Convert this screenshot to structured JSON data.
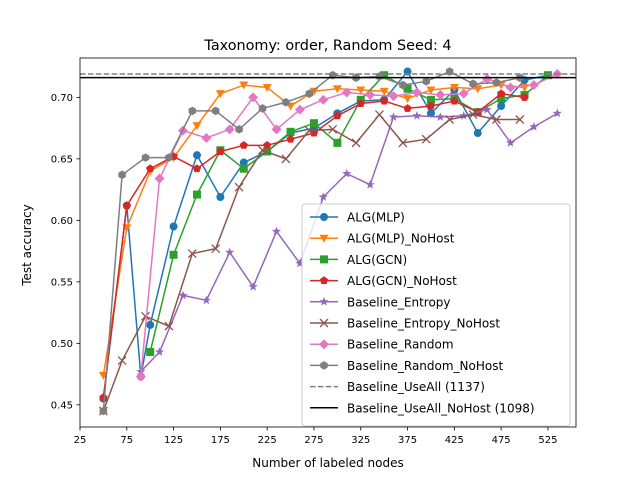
{
  "chart_data": {
    "type": "line",
    "title": "Taxonomy: order, Random Seed: 4",
    "xlabel": "Number of labeled nodes",
    "ylabel": "Test accuracy",
    "xlim": [
      25,
      555
    ],
    "ylim": [
      0.432,
      0.732
    ],
    "xticks": [
      25,
      75,
      125,
      175,
      225,
      275,
      325,
      375,
      425,
      475,
      525
    ],
    "yticks": [
      0.45,
      0.5,
      0.55,
      0.6,
      0.65,
      0.7
    ],
    "ytick_labels": [
      "0.45",
      "0.50",
      "0.55",
      "0.60",
      "0.65",
      "0.70"
    ],
    "grid": false,
    "legend_position": "lower-right",
    "series": [
      {
        "name": "ALG(MLP)",
        "color": "#1f77b4",
        "marker": "circle",
        "linestyle": "solid",
        "x": [
          50,
          75,
          90,
          100,
          125,
          150,
          175,
          200,
          225,
          250,
          275,
          300,
          325,
          350,
          375,
          400,
          425,
          450,
          475,
          500,
          525
        ],
        "y": [
          0.455,
          0.612,
          0.473,
          0.515,
          0.595,
          0.653,
          0.619,
          0.647,
          0.656,
          0.671,
          0.675,
          0.687,
          0.697,
          0.698,
          0.721,
          0.687,
          0.706,
          0.671,
          0.693,
          0.714,
          0.718
        ]
      },
      {
        "name": "ALG(MLP)_NoHost",
        "color": "#ff7f0e",
        "marker": "triangle-down",
        "linestyle": "solid",
        "x": [
          50,
          75,
          100,
          125,
          150,
          175,
          200,
          225,
          250,
          275,
          300,
          325,
          350,
          375,
          400,
          425,
          450,
          475,
          500
        ],
        "y": [
          0.474,
          0.594,
          0.64,
          0.651,
          0.677,
          0.703,
          0.71,
          0.708,
          0.693,
          0.705,
          0.707,
          0.706,
          0.705,
          0.699,
          0.706,
          0.708,
          0.707,
          0.71,
          0.708
        ]
      },
      {
        "name": "ALG(GCN)",
        "color": "#2ca02c",
        "marker": "square",
        "linestyle": "solid",
        "x": [
          100,
          125,
          150,
          175,
          200,
          225,
          250,
          275,
          300,
          325,
          350,
          375,
          400,
          425,
          450,
          475,
          500,
          525
        ],
        "y": [
          0.493,
          0.572,
          0.621,
          0.657,
          0.642,
          0.656,
          0.672,
          0.679,
          0.663,
          0.698,
          0.718,
          0.707,
          0.698,
          0.699,
          0.688,
          0.699,
          0.702,
          0.718
        ]
      },
      {
        "name": "ALG(GCN)_NoHost",
        "color": "#d62728",
        "marker": "pentagon",
        "linestyle": "solid",
        "x": [
          50,
          75,
          100,
          125,
          150,
          175,
          200,
          225,
          250,
          275,
          300,
          325,
          350,
          375,
          400,
          425,
          450,
          475,
          500
        ],
        "y": [
          0.456,
          0.612,
          0.642,
          0.652,
          0.642,
          0.656,
          0.661,
          0.661,
          0.666,
          0.671,
          0.685,
          0.695,
          0.697,
          0.691,
          0.693,
          0.697,
          0.688,
          0.703,
          0.7
        ]
      },
      {
        "name": "Baseline_Entropy",
        "color": "#9467bd",
        "marker": "star",
        "linestyle": "solid",
        "x": [
          90,
          110,
          135,
          160,
          185,
          210,
          235,
          260,
          285,
          310,
          335,
          360,
          385,
          410,
          435,
          460,
          485,
          510,
          535
        ],
        "y": [
          0.477,
          0.493,
          0.539,
          0.535,
          0.574,
          0.546,
          0.591,
          0.565,
          0.619,
          0.638,
          0.629,
          0.684,
          0.685,
          0.684,
          0.685,
          0.69,
          0.663,
          0.676,
          0.687
        ]
      },
      {
        "name": "Baseline_Entropy_NoHost",
        "color": "#8c564b",
        "marker": "x",
        "linestyle": "solid",
        "x": [
          50,
          70,
          95,
          120,
          145,
          170,
          195,
          220,
          245,
          270,
          295,
          320,
          345,
          370,
          395,
          420,
          445,
          470,
          495
        ],
        "y": [
          0.445,
          0.486,
          0.522,
          0.514,
          0.573,
          0.577,
          0.627,
          0.657,
          0.65,
          0.673,
          0.674,
          0.663,
          0.686,
          0.663,
          0.666,
          0.682,
          0.686,
          0.682,
          0.682
        ]
      },
      {
        "name": "Baseline_Random",
        "color": "#e377c2",
        "marker": "diamond",
        "linestyle": "solid",
        "x": [
          90,
          110,
          135,
          160,
          185,
          210,
          235,
          260,
          285,
          310,
          335,
          360,
          385,
          410,
          435,
          460,
          485,
          510,
          535
        ],
        "y": [
          0.473,
          0.634,
          0.673,
          0.667,
          0.674,
          0.7,
          0.674,
          0.69,
          0.698,
          0.704,
          0.702,
          0.701,
          0.704,
          0.702,
          0.703,
          0.715,
          0.708,
          0.71,
          0.719
        ]
      },
      {
        "name": "Baseline_Random_NoHost",
        "color": "#7f7f7f",
        "marker": "hexagon",
        "linestyle": "solid",
        "x": [
          50,
          70,
          95,
          120,
          145,
          170,
          195,
          220,
          245,
          270,
          295,
          320,
          345,
          370,
          395,
          420,
          445,
          470,
          495
        ],
        "y": [
          0.445,
          0.637,
          0.651,
          0.651,
          0.689,
          0.689,
          0.674,
          0.691,
          0.696,
          0.703,
          0.718,
          0.716,
          0.717,
          0.71,
          0.713,
          0.721,
          0.711,
          0.712,
          0.716
        ]
      },
      {
        "name": "Baseline_UseAll (1137)",
        "color": "#7f7f7f",
        "marker": "none",
        "linestyle": "dashed",
        "hline": 0.719
      },
      {
        "name": "Baseline_UseAll_NoHost (1098)",
        "color": "#000000",
        "marker": "none",
        "linestyle": "solid",
        "hline": 0.716
      }
    ]
  }
}
